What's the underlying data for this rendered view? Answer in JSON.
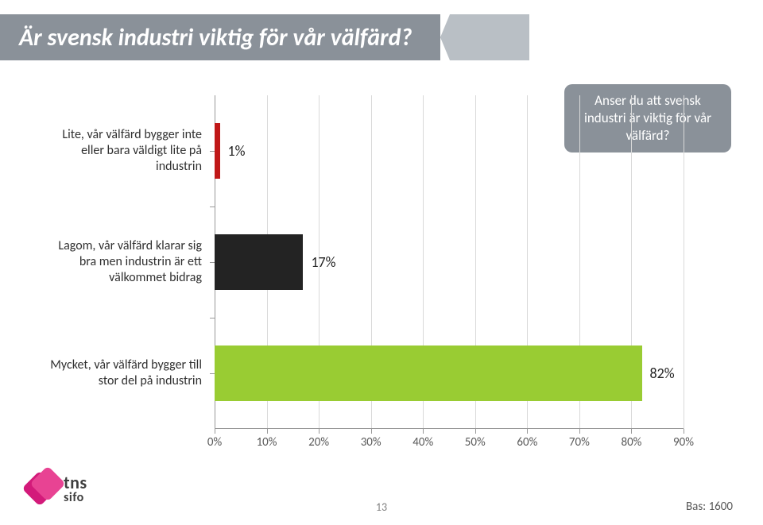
{
  "title": "Är svensk industri viktig för vår välfärd?",
  "question": "Anser du att svensk industri är viktig för vår välfärd?",
  "chart": {
    "type": "bar-horizontal",
    "xlim": [
      0,
      90
    ],
    "xtick_step": 10,
    "xticks_labels": [
      "0%",
      "10%",
      "20%",
      "30%",
      "40%",
      "50%",
      "60%",
      "70%",
      "80%",
      "90%"
    ],
    "background_color": "#ffffff",
    "grid_color": "#d9d9d9",
    "axis_color": "#999999",
    "label_color": "#595959",
    "series": [
      {
        "label": "Lite, vår välfärd bygger inte eller bara väldigt lite på industrin",
        "value": 1,
        "value_label": "1%",
        "color": "#c01818"
      },
      {
        "label": "Lagom, vår välfärd klarar sig bra men industrin är ett välkommet bidrag",
        "value": 17,
        "value_label": "17%",
        "color": "#232323"
      },
      {
        "label": "Mycket, vår välfärd bygger till stor del på industrin",
        "value": 82,
        "value_label": "82%",
        "color": "#99cc33"
      }
    ]
  },
  "logo": {
    "tns": "tns",
    "sifo": "sifo"
  },
  "page_number": "13",
  "footnote": "Bas: 1600",
  "titlebar_bg": "#8a9199",
  "titlebar_text_color": "#ffffff",
  "notch_color": "#b9bfc5"
}
